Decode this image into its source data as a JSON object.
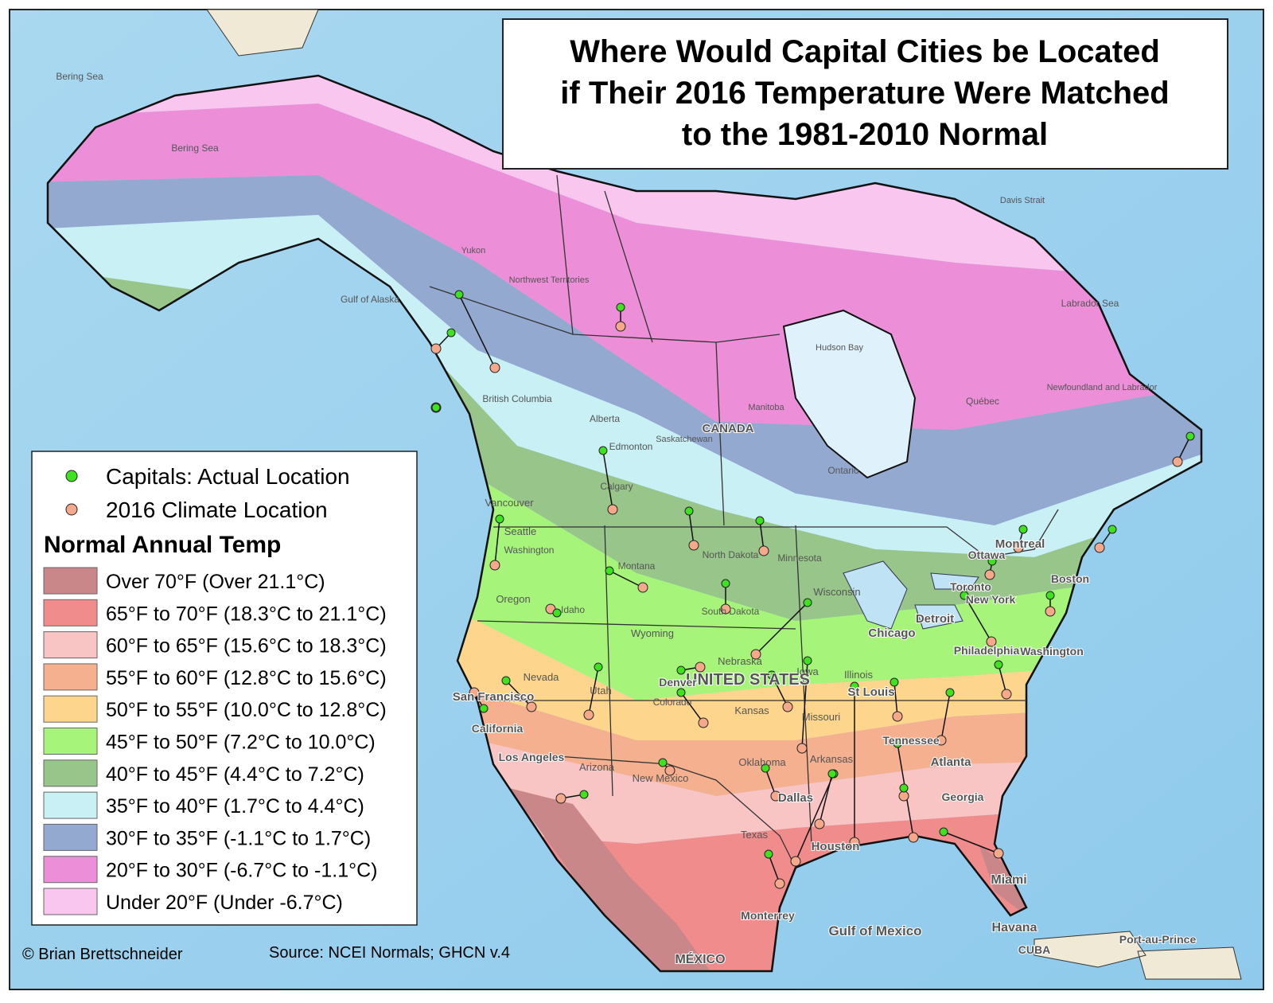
{
  "title": [
    "Where Would Capital Cities be Located",
    "if Their 2016 Temperature Were Matched",
    "to the 1981-2010 Normal"
  ],
  "legend": {
    "actual": "Capitals: Actual Location",
    "actual_color": "#3fe21f",
    "climate": "2016 Climate Location",
    "climate_color": "#f6a98a",
    "heading": "Normal Annual Temp",
    "items": [
      {
        "label": "Over 70°F (Over 21.1°C)",
        "color": "#c9878a"
      },
      {
        "label": "65°F to 70°F (18.3°C to 21.1°C)",
        "color": "#f08c8c"
      },
      {
        "label": "60°F to 65°F (15.6°C to 18.3°C)",
        "color": "#f9c4c4"
      },
      {
        "label": "55°F to 60°F (12.8°C to 15.6°C)",
        "color": "#f5b08f"
      },
      {
        "label": "50°F to 55°F (10.0°C to 12.8°C)",
        "color": "#fdd58c"
      },
      {
        "label": "45°F to 50°F (7.2°C to 10.0°C)",
        "color": "#a6f57a"
      },
      {
        "label": "40°F to 45°F (4.4°C to 7.2°C)",
        "color": "#98c58a"
      },
      {
        "label": "35°F to 40°F (1.7°C to 4.4°C)",
        "color": "#c8f0f5"
      },
      {
        "label": "30°F to 35°F (-1.1°C to 1.7°C)",
        "color": "#93a9cf"
      },
      {
        "label": "20°F to 30°F (-6.7°C to -1.1°C)",
        "color": "#ec8fd8"
      },
      {
        "label": "Under 20°F (Under -6.7°C)",
        "color": "#f9c6ef"
      }
    ]
  },
  "map_labels": [
    "Bering Sea",
    "Bering Sea",
    "Gulf of Alaska",
    "Hudson Bay",
    "Labrador Sea",
    "Davis Strait",
    "CANADA",
    "UNITED STATES",
    "Yukon",
    "Northwest Territories",
    "British Columbia",
    "Alberta",
    "Saskatchewan",
    "Manitoba",
    "Ontario",
    "Québec",
    "Newfoundland and Labrador",
    "Edmonton",
    "Calgary",
    "Vancouver",
    "Seattle",
    "Washington",
    "Oregon",
    "Idaho",
    "Montana",
    "Wyoming",
    "Nevada",
    "San Francisco",
    "California",
    "Los Angeles",
    "Utah",
    "Arizona",
    "Colorado",
    "Denver",
    "New Mexico",
    "Texas",
    "Dallas",
    "Houston",
    "Oklahoma",
    "Arkansas",
    "Kansas",
    "Nebraska",
    "North Dakota",
    "South Dakota",
    "Minnesota",
    "Wisconsin",
    "Iowa",
    "Illinois",
    "Missouri",
    "St Louis",
    "Chicago",
    "Detroit",
    "Tennessee",
    "Atlanta",
    "Georgia",
    "Miami",
    "Gulf of Mexico",
    "Havana",
    "CUBA",
    "MÉXICO",
    "Monterrey",
    "Ottawa",
    "Montreal",
    "Toronto",
    "Boston",
    "New York",
    "Philadelphia",
    "Washington",
    "Port-au-Prince"
  ],
  "credit": "© Brian Brettschneider",
  "source": "Source: NCEI Normals; GHCN v.4"
}
